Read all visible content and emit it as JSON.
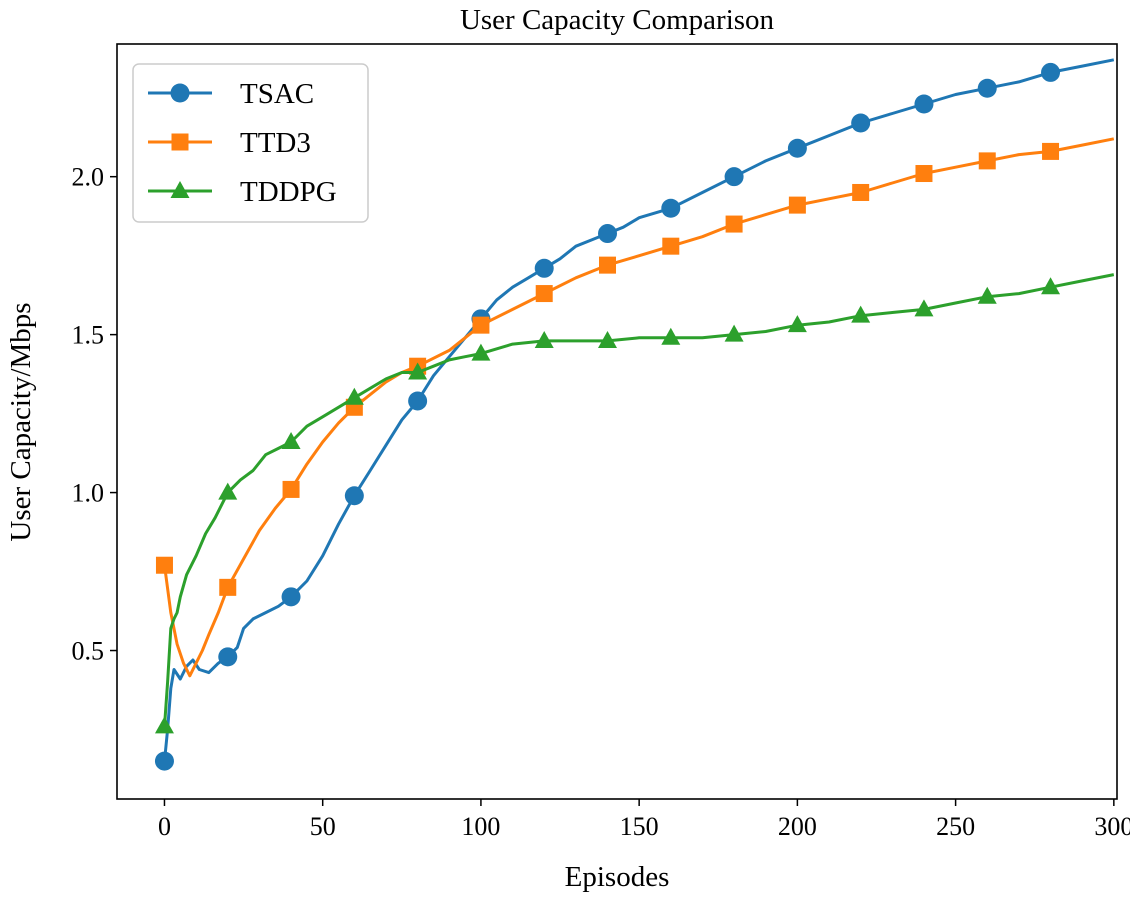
{
  "chart_data": {
    "type": "line",
    "title": "User Capacity Comparison",
    "xlabel": "Episodes",
    "ylabel": "User Capacity/Mbps",
    "xlim": [
      -15,
      301
    ],
    "ylim": [
      0.03,
      2.42
    ],
    "xticks": [
      0,
      50,
      100,
      150,
      200,
      250,
      300
    ],
    "xtick_labels": [
      "0",
      "50",
      "100",
      "150",
      "200",
      "250",
      "300"
    ],
    "yticks": [
      0.5,
      1.0,
      1.5,
      2.0
    ],
    "ytick_labels": [
      "0.5",
      "1.0",
      "1.5",
      "2.0"
    ],
    "grid": false,
    "legend_position": "top-left",
    "series": [
      {
        "name": "TSAC",
        "color": "#1f77b4",
        "marker": "circle",
        "line": [
          [
            0,
            0.15
          ],
          [
            1,
            0.25
          ],
          [
            2,
            0.38
          ],
          [
            3,
            0.44
          ],
          [
            5,
            0.41
          ],
          [
            7,
            0.45
          ],
          [
            9,
            0.47
          ],
          [
            11,
            0.44
          ],
          [
            14,
            0.43
          ],
          [
            17,
            0.46
          ],
          [
            20,
            0.48
          ],
          [
            23,
            0.51
          ],
          [
            25,
            0.57
          ],
          [
            28,
            0.6
          ],
          [
            32,
            0.62
          ],
          [
            36,
            0.64
          ],
          [
            40,
            0.67
          ],
          [
            45,
            0.72
          ],
          [
            50,
            0.8
          ],
          [
            55,
            0.9
          ],
          [
            60,
            0.99
          ],
          [
            65,
            1.07
          ],
          [
            70,
            1.15
          ],
          [
            75,
            1.23
          ],
          [
            80,
            1.29
          ],
          [
            85,
            1.37
          ],
          [
            90,
            1.43
          ],
          [
            95,
            1.49
          ],
          [
            100,
            1.55
          ],
          [
            105,
            1.61
          ],
          [
            110,
            1.65
          ],
          [
            115,
            1.68
          ],
          [
            120,
            1.71
          ],
          [
            125,
            1.74
          ],
          [
            130,
            1.78
          ],
          [
            135,
            1.8
          ],
          [
            140,
            1.82
          ],
          [
            145,
            1.84
          ],
          [
            150,
            1.87
          ],
          [
            160,
            1.9
          ],
          [
            170,
            1.95
          ],
          [
            180,
            2.0
          ],
          [
            190,
            2.05
          ],
          [
            200,
            2.09
          ],
          [
            210,
            2.13
          ],
          [
            220,
            2.17
          ],
          [
            230,
            2.2
          ],
          [
            240,
            2.23
          ],
          [
            250,
            2.26
          ],
          [
            260,
            2.28
          ],
          [
            270,
            2.3
          ],
          [
            280,
            2.33
          ],
          [
            290,
            2.35
          ],
          [
            300,
            2.37
          ]
        ],
        "marker_points": [
          [
            0,
            0.15
          ],
          [
            20,
            0.48
          ],
          [
            40,
            0.67
          ],
          [
            60,
            0.99
          ],
          [
            80,
            1.29
          ],
          [
            100,
            1.55
          ],
          [
            120,
            1.71
          ],
          [
            140,
            1.82
          ],
          [
            160,
            1.9
          ],
          [
            180,
            2.0
          ],
          [
            200,
            2.09
          ],
          [
            220,
            2.17
          ],
          [
            240,
            2.23
          ],
          [
            260,
            2.28
          ],
          [
            280,
            2.33
          ]
        ]
      },
      {
        "name": "TTD3",
        "color": "#ff7f0e",
        "marker": "square",
        "line": [
          [
            0,
            0.77
          ],
          [
            2,
            0.62
          ],
          [
            4,
            0.52
          ],
          [
            6,
            0.46
          ],
          [
            8,
            0.42
          ],
          [
            10,
            0.46
          ],
          [
            12,
            0.5
          ],
          [
            14,
            0.55
          ],
          [
            17,
            0.62
          ],
          [
            20,
            0.7
          ],
          [
            25,
            0.79
          ],
          [
            30,
            0.88
          ],
          [
            35,
            0.95
          ],
          [
            40,
            1.01
          ],
          [
            45,
            1.09
          ],
          [
            50,
            1.16
          ],
          [
            55,
            1.22
          ],
          [
            60,
            1.27
          ],
          [
            65,
            1.31
          ],
          [
            70,
            1.35
          ],
          [
            75,
            1.38
          ],
          [
            80,
            1.4
          ],
          [
            90,
            1.45
          ],
          [
            100,
            1.53
          ],
          [
            110,
            1.58
          ],
          [
            120,
            1.63
          ],
          [
            130,
            1.68
          ],
          [
            140,
            1.72
          ],
          [
            150,
            1.75
          ],
          [
            160,
            1.78
          ],
          [
            170,
            1.81
          ],
          [
            180,
            1.85
          ],
          [
            190,
            1.88
          ],
          [
            200,
            1.91
          ],
          [
            210,
            1.93
          ],
          [
            220,
            1.95
          ],
          [
            230,
            1.98
          ],
          [
            240,
            2.01
          ],
          [
            250,
            2.03
          ],
          [
            260,
            2.05
          ],
          [
            270,
            2.07
          ],
          [
            280,
            2.08
          ],
          [
            290,
            2.1
          ],
          [
            300,
            2.12
          ]
        ],
        "marker_points": [
          [
            0,
            0.77
          ],
          [
            20,
            0.7
          ],
          [
            40,
            1.01
          ],
          [
            60,
            1.27
          ],
          [
            80,
            1.4
          ],
          [
            100,
            1.53
          ],
          [
            120,
            1.63
          ],
          [
            140,
            1.72
          ],
          [
            160,
            1.78
          ],
          [
            180,
            1.85
          ],
          [
            200,
            1.91
          ],
          [
            220,
            1.95
          ],
          [
            240,
            2.01
          ],
          [
            260,
            2.05
          ],
          [
            280,
            2.08
          ]
        ]
      },
      {
        "name": "TDDPG",
        "color": "#2ca02c",
        "marker": "triangle",
        "line": [
          [
            0,
            0.26
          ],
          [
            1,
            0.4
          ],
          [
            2,
            0.57
          ],
          [
            3,
            0.6
          ],
          [
            4,
            0.62
          ],
          [
            5,
            0.67
          ],
          [
            7,
            0.74
          ],
          [
            10,
            0.8
          ],
          [
            13,
            0.87
          ],
          [
            16,
            0.92
          ],
          [
            20,
            1.0
          ],
          [
            24,
            1.04
          ],
          [
            28,
            1.07
          ],
          [
            32,
            1.12
          ],
          [
            36,
            1.14
          ],
          [
            40,
            1.16
          ],
          [
            45,
            1.21
          ],
          [
            50,
            1.24
          ],
          [
            55,
            1.27
          ],
          [
            60,
            1.3
          ],
          [
            65,
            1.33
          ],
          [
            70,
            1.36
          ],
          [
            75,
            1.38
          ],
          [
            80,
            1.38
          ],
          [
            85,
            1.4
          ],
          [
            90,
            1.42
          ],
          [
            95,
            1.43
          ],
          [
            100,
            1.44
          ],
          [
            110,
            1.47
          ],
          [
            120,
            1.48
          ],
          [
            130,
            1.48
          ],
          [
            140,
            1.48
          ],
          [
            150,
            1.49
          ],
          [
            160,
            1.49
          ],
          [
            170,
            1.49
          ],
          [
            180,
            1.5
          ],
          [
            190,
            1.51
          ],
          [
            200,
            1.53
          ],
          [
            210,
            1.54
          ],
          [
            220,
            1.56
          ],
          [
            230,
            1.57
          ],
          [
            240,
            1.58
          ],
          [
            250,
            1.6
          ],
          [
            260,
            1.62
          ],
          [
            270,
            1.63
          ],
          [
            280,
            1.65
          ],
          [
            290,
            1.67
          ],
          [
            300,
            1.69
          ]
        ],
        "marker_points": [
          [
            0,
            0.26
          ],
          [
            20,
            1.0
          ],
          [
            40,
            1.16
          ],
          [
            60,
            1.3
          ],
          [
            80,
            1.38
          ],
          [
            100,
            1.44
          ],
          [
            120,
            1.48
          ],
          [
            140,
            1.48
          ],
          [
            160,
            1.49
          ],
          [
            180,
            1.5
          ],
          [
            200,
            1.53
          ],
          [
            220,
            1.56
          ],
          [
            240,
            1.58
          ],
          [
            260,
            1.62
          ],
          [
            280,
            1.65
          ]
        ]
      }
    ]
  }
}
